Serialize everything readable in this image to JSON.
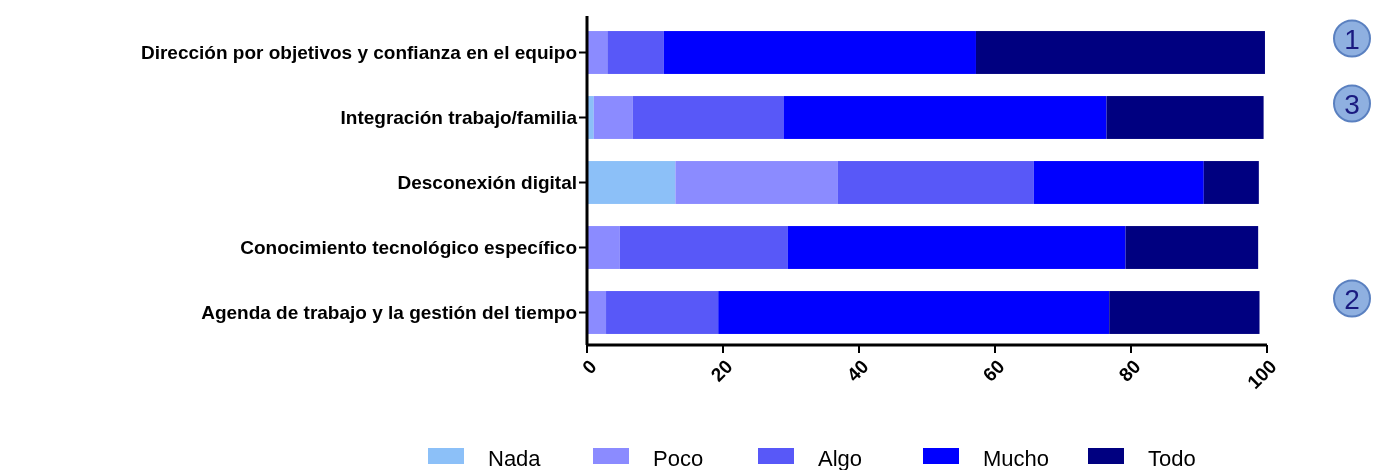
{
  "chart_data": {
    "type": "bar",
    "orientation": "horizontal",
    "stacked": true,
    "categories": [
      "Dirección por objetivos y confianza en el equipo",
      "Integración trabajo/familia",
      "Desconexión digital",
      "Conocimiento tecnológico específico",
      "Agenda de trabajo y la gestión del tiempo"
    ],
    "series": [
      {
        "name": "Nada",
        "color": "#8cc0f8",
        "values": [
          0,
          1.0,
          13.0,
          null,
          null
        ]
      },
      {
        "name": "Poco",
        "color": "#8b8bff",
        "values": [
          3.0,
          5.7,
          23.9,
          4.8,
          2.8
        ]
      },
      {
        "name": "Algo",
        "color": "#5858f8",
        "values": [
          8.3,
          22.2,
          28.8,
          24.7,
          16.5
        ]
      },
      {
        "name": "Mucho",
        "color": "#0000ff",
        "values": [
          45.9,
          47.5,
          25.0,
          49.7,
          57.5
        ]
      },
      {
        "name": "Todo",
        "color": "#000080",
        "values": [
          42.5,
          23.1,
          8.1,
          19.5,
          22.1
        ]
      }
    ],
    "xlim": [
      0,
      100
    ],
    "xticks": [
      0,
      20,
      40,
      60,
      80,
      100
    ],
    "grid": false,
    "legend": "bottom",
    "annotations": [
      "1",
      "3",
      "2"
    ]
  }
}
